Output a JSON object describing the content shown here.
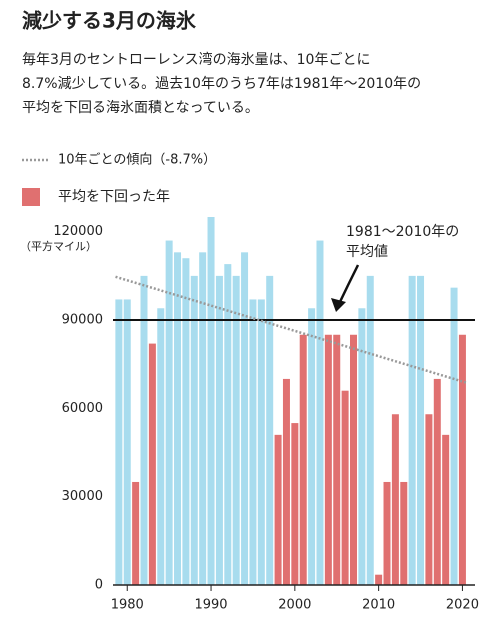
{
  "chart_data": {
    "type": "bar",
    "title": "減少する3月の海氷",
    "subtitle": [
      "毎年3月のセントローレンス湾の海氷量は、10年ごとに",
      "8.7%減少している。過去10年のうち7年は1981年〜2010年の",
      "平均を下回る海氷面積となっている。"
    ],
    "y_label": "（平方マイル）",
    "x": [
      1979,
      1980,
      1981,
      1982,
      1983,
      1984,
      1985,
      1986,
      1987,
      1988,
      1989,
      1990,
      1991,
      1992,
      1993,
      1994,
      1995,
      1996,
      1997,
      1998,
      1999,
      2000,
      2001,
      2002,
      2003,
      2004,
      2005,
      2006,
      2007,
      2008,
      2009,
      2010,
      2011,
      2012,
      2013,
      2014,
      2015,
      2016,
      2017,
      2018,
      2019,
      2020
    ],
    "values": [
      97000,
      97000,
      35000,
      105000,
      82000,
      94000,
      117000,
      113000,
      111000,
      105000,
      113000,
      125000,
      105000,
      109000,
      105000,
      113000,
      97000,
      97000,
      105000,
      51000,
      70000,
      55000,
      85000,
      94000,
      117000,
      85000,
      85000,
      66000,
      85000,
      94000,
      105000,
      3500,
      35000,
      58000,
      35000,
      105000,
      105000,
      58000,
      70000,
      51000,
      101000,
      85000
    ],
    "colors": [
      "#a8dcee",
      "#a8dcee",
      "#e07070",
      "#a8dcee",
      "#e07070",
      "#a8dcee",
      "#a8dcee",
      "#a8dcee",
      "#a8dcee",
      "#a8dcee",
      "#a8dcee",
      "#a8dcee",
      "#a8dcee",
      "#a8dcee",
      "#a8dcee",
      "#a8dcee",
      "#a8dcee",
      "#a8dcee",
      "#a8dcee",
      "#e07070",
      "#e07070",
      "#e07070",
      "#e07070",
      "#a8dcee",
      "#a8dcee",
      "#e07070",
      "#e07070",
      "#e07070",
      "#e07070",
      "#a8dcee",
      "#a8dcee",
      "#e07070",
      "#e07070",
      "#e07070",
      "#e07070",
      "#a8dcee",
      "#a8dcee",
      "#e07070",
      "#e07070",
      "#e07070",
      "#a8dcee",
      "#e07070"
    ],
    "below_average_legend": {
      "name": "平均を下回った年",
      "color": "#e07070"
    },
    "trend": {
      "name": "10年ごとの傾向（-8.7%）",
      "color": "#999999",
      "x": [
        1978.6,
        2020.5
      ],
      "values": [
        104700,
        68700
      ]
    },
    "average": {
      "value": 90000,
      "label": [
        "1981〜2010年の",
        "平均値"
      ]
    },
    "xlim": [
      1978.3,
      2021.5
    ],
    "ylim": [
      0,
      125000
    ],
    "xticks": [
      1980,
      1990,
      2000,
      2010,
      2020
    ],
    "yticks": [
      0,
      30000,
      60000,
      90000,
      120000
    ]
  }
}
